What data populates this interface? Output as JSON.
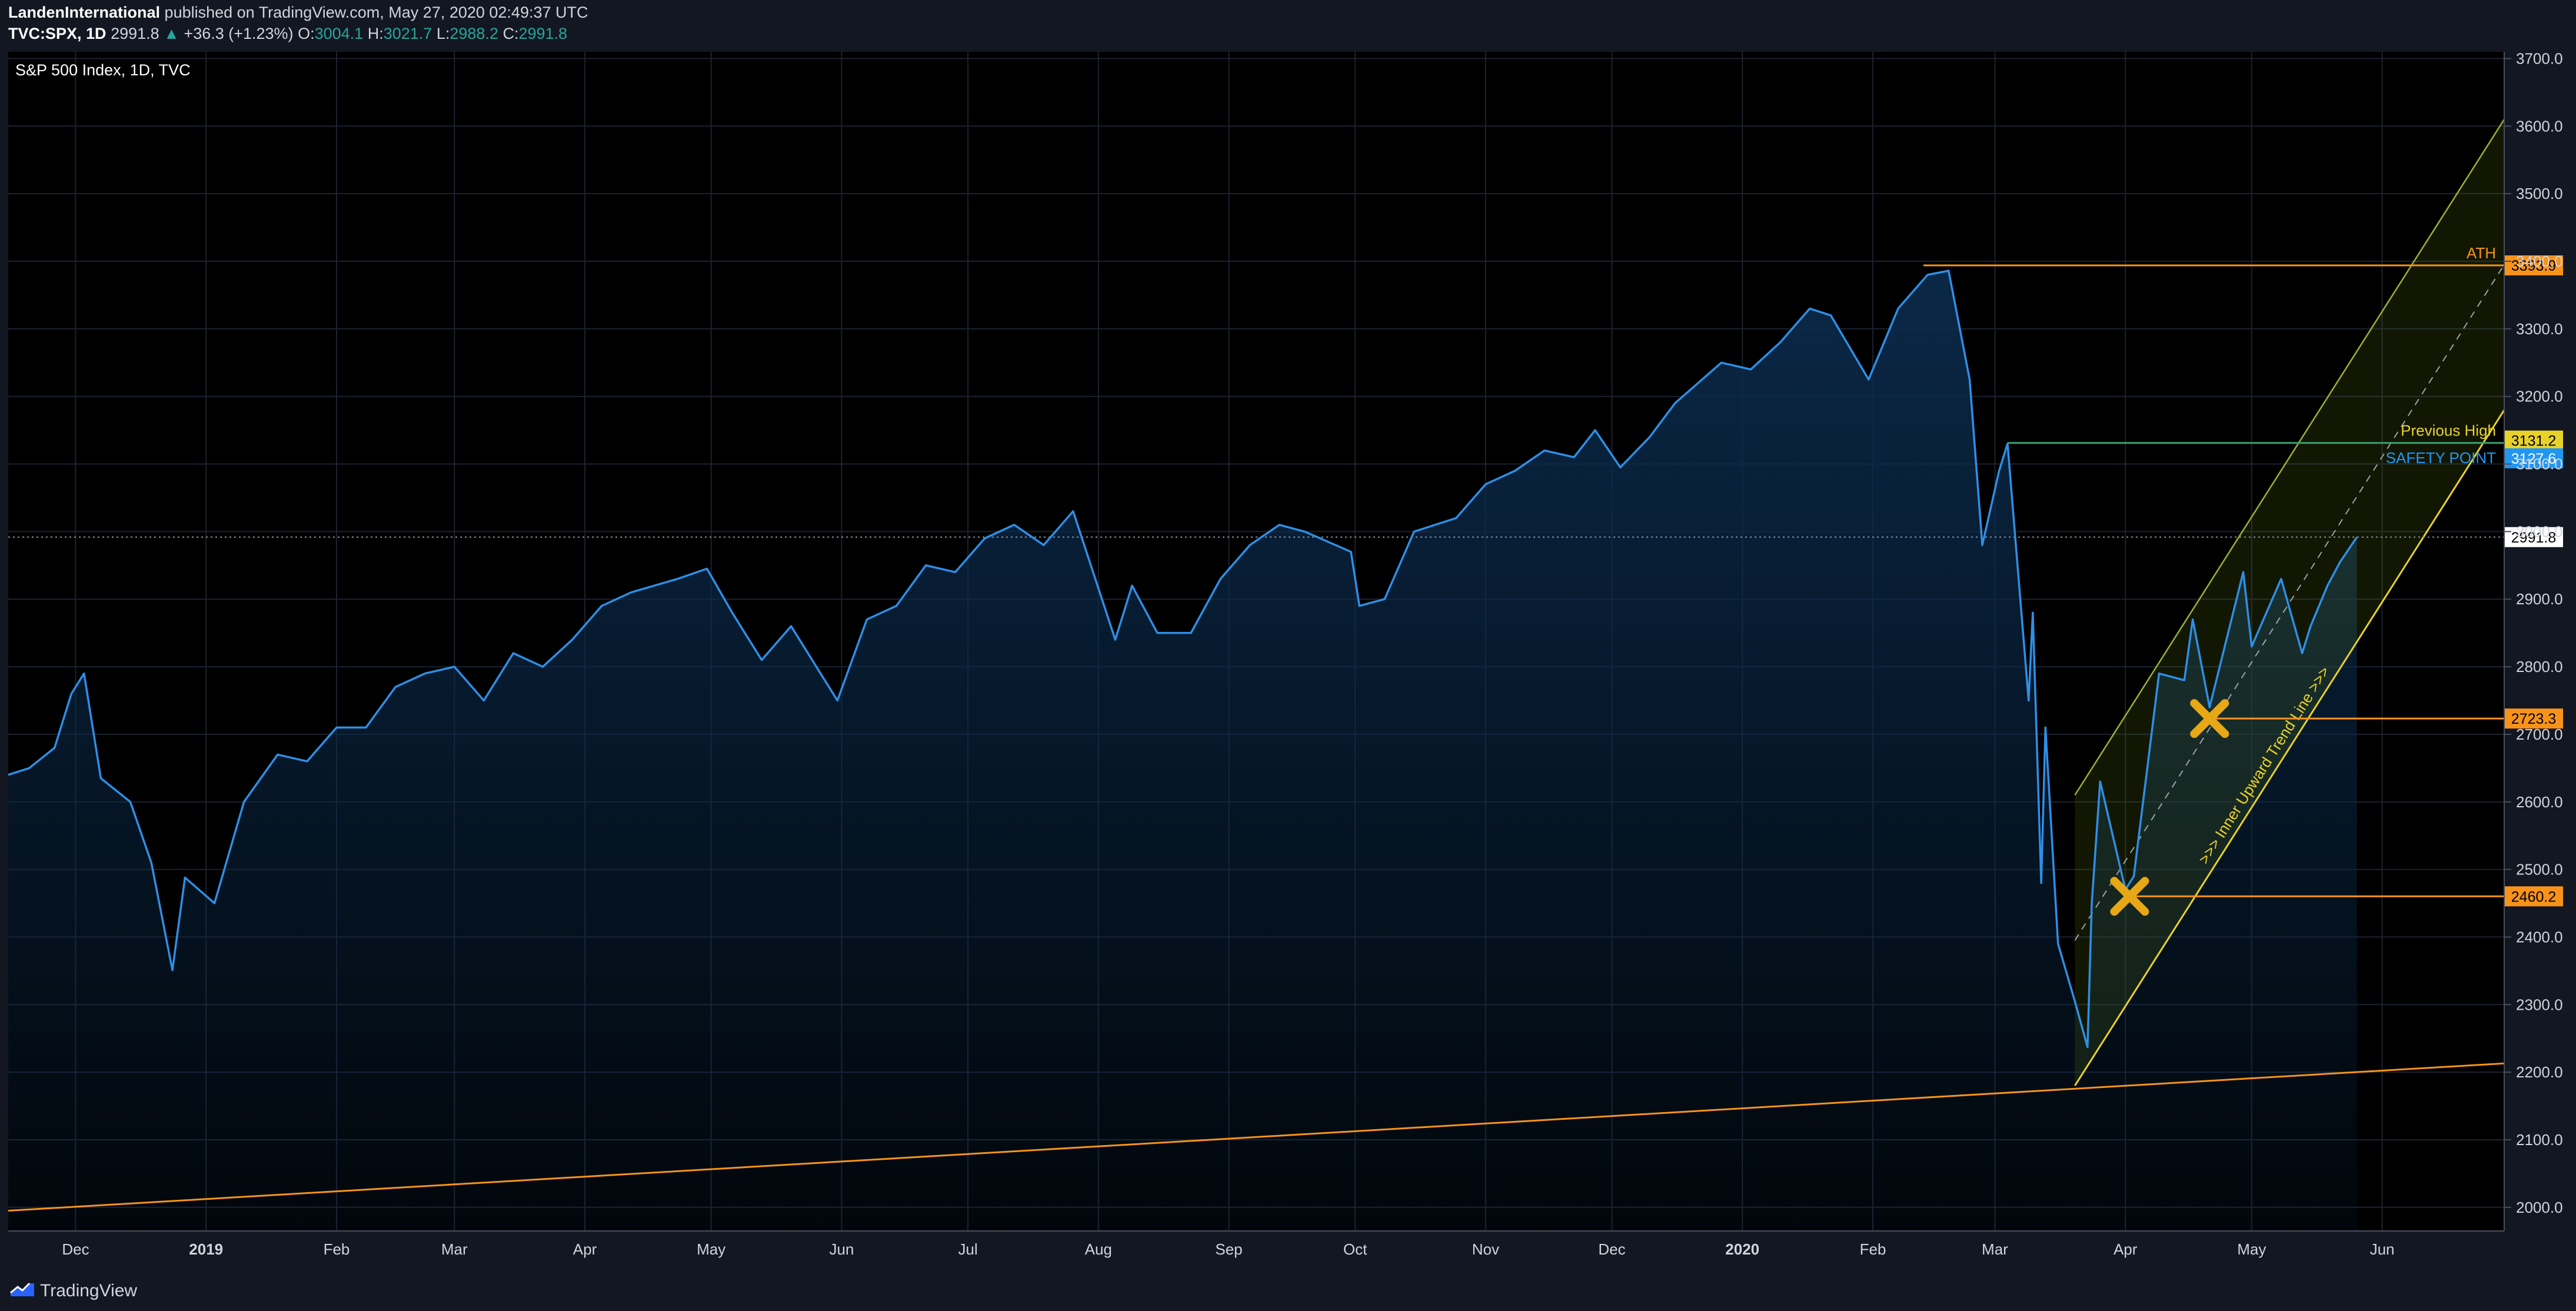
{
  "header": {
    "author": "LandenInternational",
    "published_text": "published on TradingView.com, May 27, 2020 02:49:37 UTC",
    "symbol": "TVC:SPX, 1D",
    "last": "2991.8",
    "change": "+36.3 (+1.23%)",
    "o_label": "O:",
    "o_value": "3004.1",
    "h_label": "H:",
    "h_value": "3021.7",
    "l_label": "L:",
    "l_value": "2988.2",
    "c_label": "C:",
    "c_value": "2991.8"
  },
  "series_label": "S&P 500 Index, 1D, TVC",
  "footer": {
    "brand": "TradingView",
    "logo_icon": "tradingview-logo-icon"
  },
  "colors": {
    "background": "#000000",
    "line": "#2e8fe6",
    "fill": "#0b2a4a",
    "orange": "#f7931a",
    "yellow": "#e8d22a",
    "channel": "#b9cf3a",
    "blue_label": "#2196f3",
    "text": "#d1d4dc",
    "cross": "#e6a817"
  },
  "chart_data": {
    "type": "line",
    "title": "S&P 500 Index, 1D, TVC",
    "ylim": [
      1965,
      3710
    ],
    "yticks": [
      2000,
      2100,
      2200,
      2300,
      2400,
      2500,
      2600,
      2700,
      2800,
      2900,
      3000,
      3100,
      3200,
      3300,
      3400,
      3500,
      3600,
      3700
    ],
    "xlim": [
      "2018-11-15",
      "2020-06-30"
    ],
    "x_ticks": [
      {
        "date": "2018-12-01",
        "label": "Dec",
        "bold": false
      },
      {
        "date": "2019-01-01",
        "label": "2019",
        "bold": true
      },
      {
        "date": "2019-02-01",
        "label": "Feb",
        "bold": false
      },
      {
        "date": "2019-03-01",
        "label": "Mar",
        "bold": false
      },
      {
        "date": "2019-04-01",
        "label": "Apr",
        "bold": false
      },
      {
        "date": "2019-05-01",
        "label": "May",
        "bold": false
      },
      {
        "date": "2019-06-01",
        "label": "Jun",
        "bold": false
      },
      {
        "date": "2019-07-01",
        "label": "Jul",
        "bold": false
      },
      {
        "date": "2019-08-01",
        "label": "Aug",
        "bold": false
      },
      {
        "date": "2019-09-01",
        "label": "Sep",
        "bold": false
      },
      {
        "date": "2019-10-01",
        "label": "Oct",
        "bold": false
      },
      {
        "date": "2019-11-01",
        "label": "Nov",
        "bold": false
      },
      {
        "date": "2019-12-01",
        "label": "Dec",
        "bold": false
      },
      {
        "date": "2020-01-01",
        "label": "2020",
        "bold": true
      },
      {
        "date": "2020-02-01",
        "label": "Feb",
        "bold": false
      },
      {
        "date": "2020-03-01",
        "label": "Mar",
        "bold": false
      },
      {
        "date": "2020-04-01",
        "label": "Apr",
        "bold": false
      },
      {
        "date": "2020-05-01",
        "label": "May",
        "bold": false
      },
      {
        "date": "2020-06-01",
        "label": "Jun",
        "bold": false
      }
    ],
    "grid": true,
    "series": [
      {
        "x": [
          "2018-11-15",
          "2018-11-20",
          "2018-11-26",
          "2018-11-30",
          "2018-12-03",
          "2018-12-07",
          "2018-12-14",
          "2018-12-19",
          "2018-12-24",
          "2018-12-27",
          "2019-01-03",
          "2019-01-10",
          "2019-01-18",
          "2019-01-25",
          "2019-02-01",
          "2019-02-08",
          "2019-02-15",
          "2019-02-22",
          "2019-03-01",
          "2019-03-08",
          "2019-03-15",
          "2019-03-22",
          "2019-03-29",
          "2019-04-05",
          "2019-04-12",
          "2019-04-23",
          "2019-04-30",
          "2019-05-06",
          "2019-05-13",
          "2019-05-20",
          "2019-05-31",
          "2019-06-07",
          "2019-06-14",
          "2019-06-21",
          "2019-06-28",
          "2019-07-05",
          "2019-07-12",
          "2019-07-19",
          "2019-07-26",
          "2019-08-05",
          "2019-08-09",
          "2019-08-15",
          "2019-08-23",
          "2019-08-30",
          "2019-09-06",
          "2019-09-13",
          "2019-09-19",
          "2019-09-30",
          "2019-10-02",
          "2019-10-08",
          "2019-10-15",
          "2019-10-25",
          "2019-11-01",
          "2019-11-08",
          "2019-11-15",
          "2019-11-22",
          "2019-11-27",
          "2019-12-03",
          "2019-12-10",
          "2019-12-16",
          "2019-12-27",
          "2020-01-03",
          "2020-01-10",
          "2020-01-17",
          "2020-01-22",
          "2020-01-31",
          "2020-02-07",
          "2020-02-14",
          "2020-02-19",
          "2020-02-24",
          "2020-02-27",
          "2020-03-02",
          "2020-03-04",
          "2020-03-09",
          "2020-03-10",
          "2020-03-12",
          "2020-03-13",
          "2020-03-16",
          "2020-03-20",
          "2020-03-23",
          "2020-03-24",
          "2020-03-26",
          "2020-04-01",
          "2020-04-03",
          "2020-04-09",
          "2020-04-15",
          "2020-04-17",
          "2020-04-21",
          "2020-04-29",
          "2020-05-01",
          "2020-05-08",
          "2020-05-13",
          "2020-05-15",
          "2020-05-19",
          "2020-05-22",
          "2020-05-26"
        ],
        "values": [
          2640,
          2650,
          2680,
          2760,
          2790,
          2635,
          2600,
          2510,
          2351,
          2488,
          2450,
          2600,
          2670,
          2660,
          2710,
          2710,
          2770,
          2790,
          2800,
          2750,
          2820,
          2800,
          2840,
          2890,
          2910,
          2930,
          2945,
          2880,
          2810,
          2860,
          2750,
          2870,
          2890,
          2950,
          2940,
          2990,
          3010,
          2980,
          3030,
          2840,
          2920,
          2850,
          2850,
          2930,
          2980,
          3010,
          3000,
          2970,
          2890,
          2900,
          3000,
          3020,
          3070,
          3090,
          3120,
          3110,
          3150,
          3095,
          3140,
          3190,
          3250,
          3240,
          3280,
          3330,
          3320,
          3225,
          3330,
          3380,
          3386,
          3225,
          2980,
          3090,
          3130,
          2750,
          2880,
          2480,
          2710,
          2390,
          2305,
          2237,
          2450,
          2630,
          2470,
          2490,
          2790,
          2780,
          2870,
          2740,
          2940,
          2830,
          2930,
          2820,
          2860,
          2920,
          2955,
          2991.8
        ]
      }
    ],
    "last_price": "2991.8",
    "annotations": {
      "horizontal_lines": [
        {
          "price": 3393.9,
          "label": "ATH",
          "tag": "3393.9",
          "from_date": "2020-02-13"
        },
        {
          "price": 3131.2,
          "label": "Previous High",
          "tag": "3131.2",
          "from_date": "2020-03-04"
        },
        {
          "price": 3127.6,
          "label": "SAFETY POINT",
          "tag": "3127.6",
          "from_date": "2020-03-04"
        },
        {
          "price": 2723.3,
          "label": "",
          "tag": "2723.3",
          "from_date": "2020-04-21"
        },
        {
          "price": 2460.2,
          "label": "",
          "tag": "2460.2",
          "from_date": "2020-04-02"
        }
      ],
      "outer_trend_line": {
        "p1": [
          "2018-11-15",
          1995
        ],
        "p2": [
          "2020-06-30",
          2213
        ]
      },
      "channel": {
        "upper": {
          "p1": [
            "2020-03-20",
            2610
          ],
          "p2": [
            "2020-06-30",
            3610
          ]
        },
        "lower": {
          "p1": [
            "2020-03-20",
            2180
          ],
          "p2": [
            "2020-06-30",
            3180
          ]
        },
        "mid": {
          "p1": [
            "2020-03-20",
            2395
          ],
          "p2": [
            "2020-06-30",
            3395
          ]
        },
        "text": ">>> Inner Upward Trend Line >>>"
      },
      "markers": [
        {
          "date": "2020-04-02",
          "price": 2460.2,
          "icon": "cross-marker-icon"
        },
        {
          "date": "2020-04-21",
          "price": 2723.3,
          "icon": "cross-marker-icon"
        }
      ]
    }
  }
}
